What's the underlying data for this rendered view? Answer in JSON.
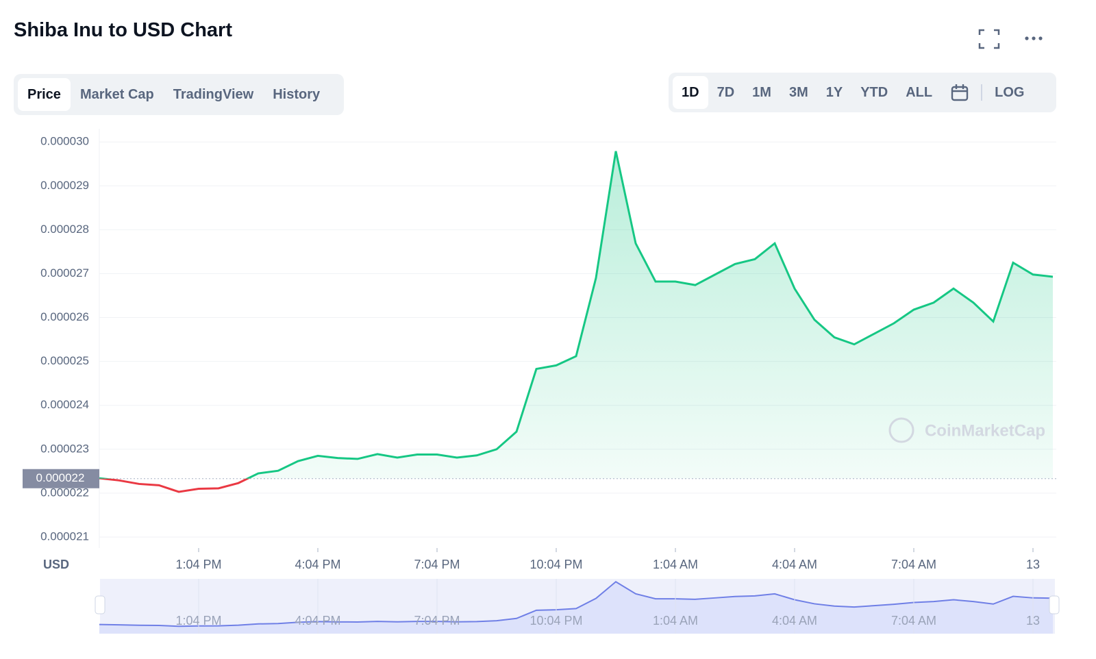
{
  "tabs": [
    "Price",
    "Market Cap",
    "TradingView",
    "History"
  ],
  "ranges": [
    "1D",
    "7D",
    "1M",
    "3M",
    "1Y",
    "YTD",
    "ALL"
  ],
  "scale_button": "LOG",
  "watermark": "CoinMarketCap",
  "chart_data": {
    "type": "line",
    "title": "Shiba Inu to USD Chart",
    "y_axis_label": "USD",
    "categories": [
      null,
      null,
      null,
      null,
      null,
      "1:04 PM",
      null,
      null,
      null,
      null,
      null,
      "4:04 PM",
      null,
      null,
      null,
      null,
      null,
      "7:04 PM",
      null,
      null,
      null,
      null,
      null,
      "10:04 PM",
      null,
      null,
      null,
      null,
      null,
      "1:04 AM",
      null,
      null,
      null,
      null,
      null,
      "4:04 AM",
      null,
      null,
      null,
      null,
      null,
      "7:04 AM",
      null,
      null,
      null,
      null,
      null,
      "13",
      null
    ],
    "values": [
      2.234e-05,
      2.229e-05,
      2.221e-05,
      2.218e-05,
      2.203e-05,
      2.21e-05,
      2.211e-05,
      2.223e-05,
      2.245e-05,
      2.251e-05,
      2.273e-05,
      2.285e-05,
      2.28e-05,
      2.278e-05,
      2.289e-05,
      2.281e-05,
      2.288e-05,
      2.288e-05,
      2.281e-05,
      2.286e-05,
      2.3e-05,
      2.34e-05,
      2.483e-05,
      2.491e-05,
      2.512e-05,
      2.69e-05,
      2.979e-05,
      2.769e-05,
      2.682e-05,
      2.682e-05,
      2.674e-05,
      2.698e-05,
      2.722e-05,
      2.733e-05,
      2.769e-05,
      2.666e-05,
      2.595e-05,
      2.555e-05,
      2.539e-05,
      2.563e-05,
      2.587e-05,
      2.618e-05,
      2.634e-05,
      2.666e-05,
      2.634e-05,
      2.591e-05,
      2.725e-05,
      2.698e-05,
      2.693e-05
    ],
    "up_color": "#16c784",
    "down_color": "#ea3943",
    "reference_line": {
      "value": 2.233e-05,
      "label": "0.000022"
    },
    "ylim": [
      2.075e-05,
      3.03e-05
    ],
    "yticks": [
      {
        "value": 2.1e-05,
        "label": "0.000021"
      },
      {
        "value": 2.2e-05,
        "label": "0.000022"
      },
      {
        "value": 2.3e-05,
        "label": "0.000023"
      },
      {
        "value": 2.4e-05,
        "label": "0.000024"
      },
      {
        "value": 2.5e-05,
        "label": "0.000025"
      },
      {
        "value": 2.6e-05,
        "label": "0.000026"
      },
      {
        "value": 2.7e-05,
        "label": "0.000027"
      },
      {
        "value": 2.8e-05,
        "label": "0.000028"
      },
      {
        "value": 2.9e-05,
        "label": "0.000029"
      },
      {
        "value": 3e-05,
        "label": "0.000030"
      }
    ],
    "grid": true
  }
}
